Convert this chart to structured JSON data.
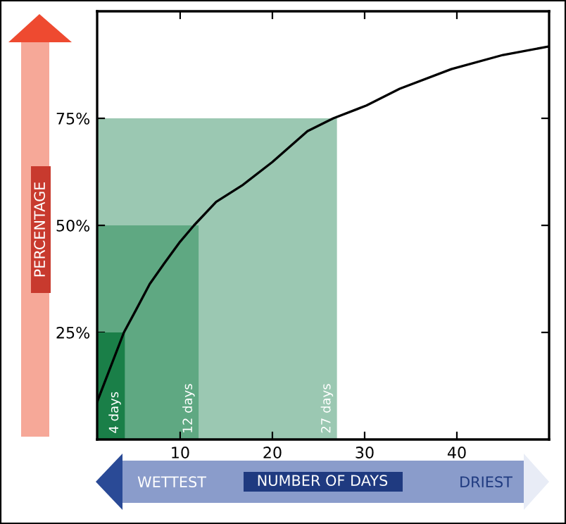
{
  "chart_data": {
    "type": "line",
    "xlabel": "NUMBER OF DAYS",
    "ylabel": "PERCENTAGE",
    "annotations": [
      {
        "text": "4 days",
        "x": 4,
        "y": 0
      },
      {
        "text": "12 days",
        "x": 12,
        "y": 0
      },
      {
        "text": "27 days",
        "x": 27,
        "y": 0
      },
      "WETTEST",
      "DRIEST"
    ],
    "series": [
      {
        "type": "area",
        "color": "#9bc8b2",
        "x": [
          1,
          27
        ],
        "values": [
          75,
          75
        ]
      },
      {
        "type": "area",
        "color": "#5fa882",
        "x": [
          1,
          12
        ],
        "values": [
          50,
          50
        ]
      },
      {
        "type": "area",
        "color": "#1a7f48",
        "x": [
          1,
          4
        ],
        "values": [
          25,
          25
        ]
      },
      {
        "color": "#000000",
        "x": [
          1,
          3.9,
          5.2,
          6.7,
          8.3,
          10,
          11.5,
          13.9,
          16.7,
          20,
          23.8,
          26.6,
          30.2,
          33.8,
          39.4,
          45,
          50
        ],
        "values": [
          8.8,
          25,
          30.2,
          36.3,
          41.2,
          46.2,
          50,
          55.5,
          59.3,
          64.8,
          72,
          75,
          78,
          81.9,
          86.5,
          89.8,
          91.8
        ]
      }
    ],
    "xlim": [
      1,
      50
    ],
    "ylim": [
      0,
      100
    ],
    "xticks": [
      10,
      20,
      30,
      40
    ],
    "yticks": [
      {
        "value": 25,
        "label": "25%"
      },
      {
        "value": 50,
        "label": "50%"
      },
      {
        "value": 75,
        "label": "75%"
      }
    ],
    "grid": false,
    "marker": "none",
    "line_style": "solid"
  }
}
